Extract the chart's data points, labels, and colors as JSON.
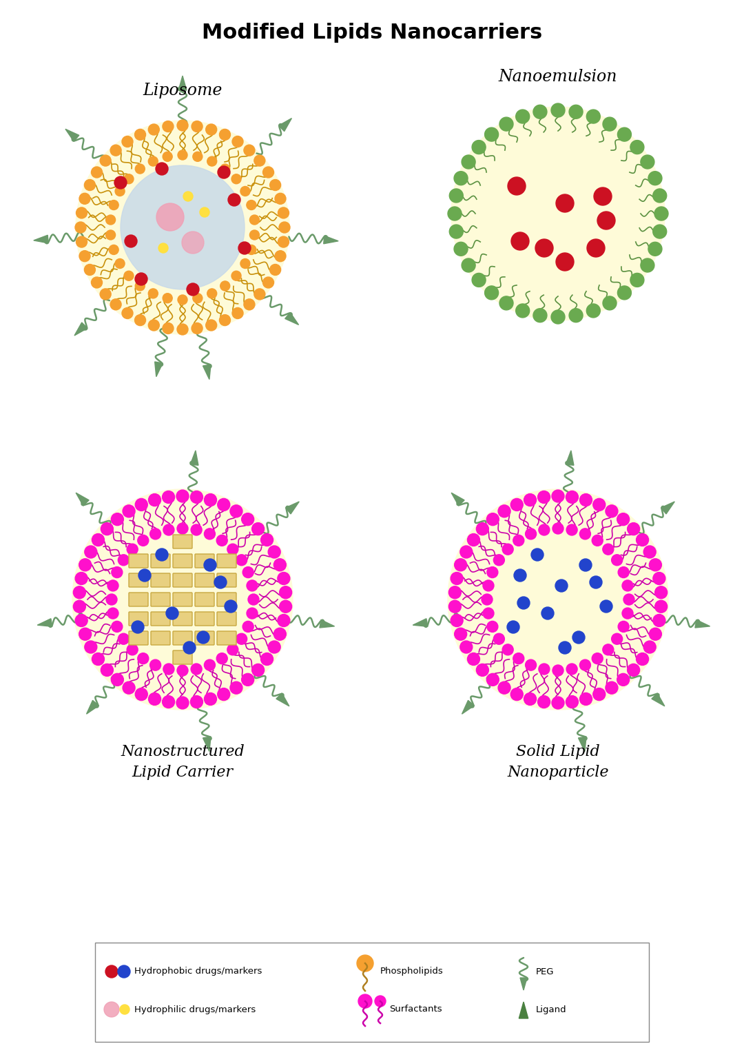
{
  "title": "Modified Lipids Nanocarriers",
  "title_fontsize": 20,
  "title_fontweight": "bold",
  "bg_color": "#ffffff",
  "labels": {
    "liposome": "Liposome",
    "nanoemulsion": "Nanoemulsion",
    "nlc": "Nanostructured\nLipid Carrier",
    "slnp": "Solid Lipid\nNanoparticle"
  },
  "colors": {
    "orange": "#F5A030",
    "cream": "#FEFBD8",
    "light_blue": "#C5D8EA",
    "pink": "#F0A0B5",
    "red": "#CC1122",
    "yellow": "#FFE040",
    "magenta": "#FF10CC",
    "magenta_tail": "#CC00AA",
    "blue_dot": "#2244CC",
    "green_peg": "#6A9A6A",
    "green_surf": "#7AAA60",
    "green_surf_head": "#6AAA50",
    "tan_rect": "#E8D080",
    "tan_rect_edge": "#C8A840"
  }
}
